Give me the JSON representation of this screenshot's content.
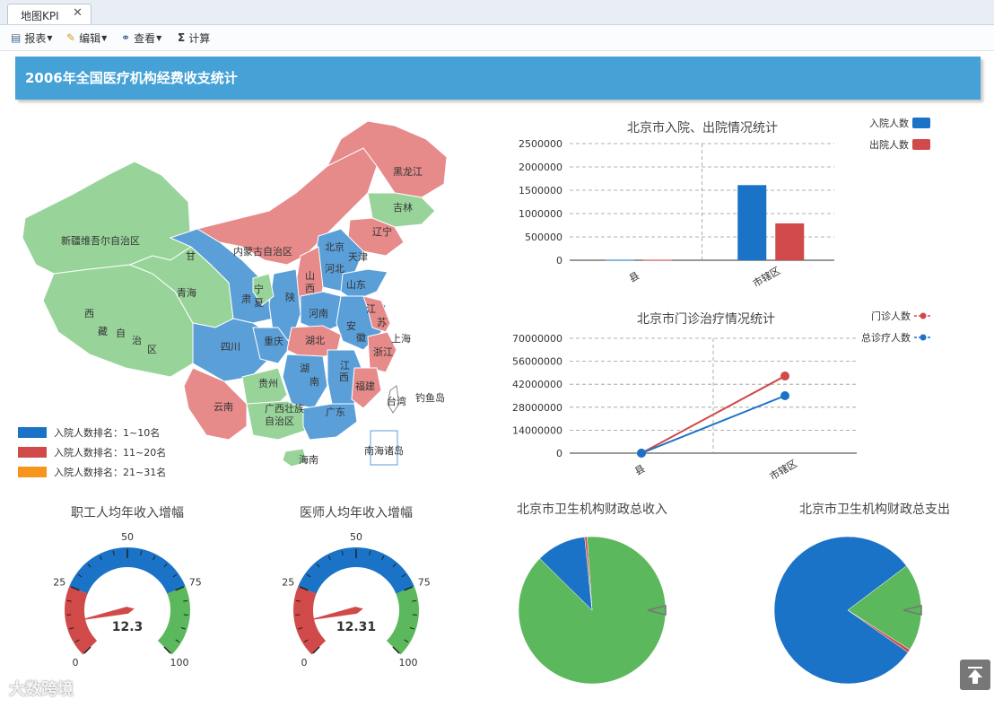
{
  "tab": {
    "label": "地图KPI",
    "close": "✕"
  },
  "toolbar": {
    "report": "报表",
    "edit": "编辑",
    "view": "查看",
    "calc": "计算"
  },
  "banner": {
    "title": "2006年全国医疗机构经费收支统计"
  },
  "colors": {
    "blue": "#1a73c6",
    "red": "#d04a4a",
    "green": "#5cb85c",
    "orange": "#f7941d",
    "map_blue": "#5b9fd9",
    "map_red": "#e68a8a",
    "map_green": "#98d49a"
  },
  "map": {
    "regions": [
      "黑龙江",
      "吉林",
      "辽宁",
      "内蒙古自治区",
      "新疆维吾尔自治区",
      "北京",
      "天津",
      "河北",
      "山东",
      "甘",
      "青海",
      "宁",
      "夏",
      "肃",
      "陕",
      "山",
      "西",
      "河南",
      "西",
      "藏",
      "自",
      "治",
      "区",
      "江",
      "苏",
      "上海",
      "安",
      "徽",
      "四川",
      "重庆",
      "湖北",
      "浙江",
      "湖",
      "南",
      "江",
      "西",
      "贵州",
      "福建",
      "云南",
      "广西壮族",
      "自治区",
      "广东",
      "台湾",
      "钓鱼岛",
      "海南",
      "南海诸岛"
    ],
    "legend": [
      "入院人数排名：1~10名",
      "入院人数排名：11~20名",
      "入院人数排名：21~31名"
    ]
  },
  "chart_data": [
    {
      "type": "bar",
      "title": "北京市入院、出院情况统计",
      "categories": [
        "县",
        "市辖区"
      ],
      "series": [
        {
          "name": "入院人数",
          "values": [
            10000,
            1610000
          ]
        },
        {
          "name": "出院人数",
          "values": [
            8000,
            790000
          ]
        }
      ],
      "yticks": [
        "0",
        "500000",
        "1000000",
        "1500000",
        "2000000",
        "2500000"
      ],
      "ylim": [
        0,
        2500000
      ],
      "legend": "top-right"
    },
    {
      "type": "line",
      "title": "北京市门诊治疗情况统计",
      "categories": [
        "县",
        "市辖区"
      ],
      "series": [
        {
          "name": "门诊人数",
          "values": [
            0,
            47000000
          ]
        },
        {
          "name": "总诊疗人数",
          "values": [
            0,
            35000000
          ]
        }
      ],
      "yticks": [
        "0",
        "14000000",
        "28000000",
        "42000000",
        "56000000",
        "70000000"
      ],
      "ylim": [
        0,
        70000000
      ],
      "legend": "top-right"
    },
    {
      "type": "gauge",
      "title": "职工人均年收入增幅",
      "value": 12.3,
      "value_label": "12.3",
      "min": 0,
      "max": 100,
      "ticks": [
        "0",
        "25",
        "50",
        "75",
        "100"
      ]
    },
    {
      "type": "gauge",
      "title": "医师人均年收入增幅",
      "value": 12.31,
      "value_label": "12.31",
      "min": 0,
      "max": 100,
      "ticks": [
        "0",
        "25",
        "50",
        "75",
        "100"
      ]
    },
    {
      "type": "pie",
      "title": "北京市卫生机构财政总收入",
      "slices": [
        {
          "value": 88.5,
          "color": "#5cb85c"
        },
        {
          "value": 11.0,
          "color": "#1a73c6"
        },
        {
          "value": 0.5,
          "color": "#d04a4a"
        }
      ]
    },
    {
      "type": "pie",
      "title": "北京市卫生机构财政总支出",
      "slices": [
        {
          "value": 80.0,
          "color": "#1a73c6"
        },
        {
          "value": 19.3,
          "color": "#5cb85c"
        },
        {
          "value": 0.7,
          "color": "#d04a4a"
        }
      ]
    }
  ],
  "watermark": "大数跨境"
}
